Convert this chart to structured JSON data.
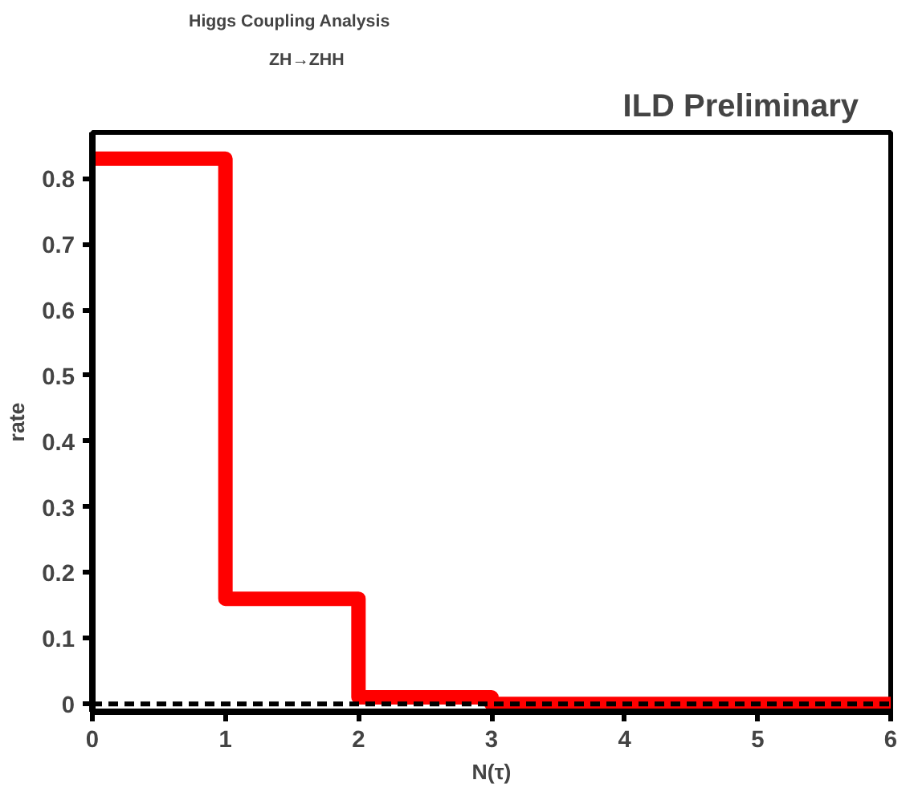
{
  "chart_data": {
    "type": "histogram",
    "title": "Higgs Coupling Analysis",
    "subtitle": "ZH→ZHH",
    "annotations": [
      "ILD Preliminary"
    ],
    "xlabel": "N(τ)",
    "ylabel": "rate",
    "bins": [
      0,
      1,
      2,
      3,
      4,
      5,
      6
    ],
    "values": [
      0.83,
      0.16,
      0.01,
      0,
      0,
      0
    ],
    "color": "#ff0000",
    "xlim": [
      0,
      6
    ],
    "ylim": [
      -0.012,
      0.87
    ],
    "xticks": [
      0,
      1,
      2,
      3,
      4,
      5,
      6
    ],
    "yticks": [
      0,
      0.1,
      0.2,
      0.3,
      0.4,
      0.5,
      0.6,
      0.7,
      0.8
    ],
    "ref_lines": [
      {
        "axis": "y",
        "value": 0,
        "color": "#000000",
        "line_style": "dashed"
      }
    ],
    "grid": false
  }
}
